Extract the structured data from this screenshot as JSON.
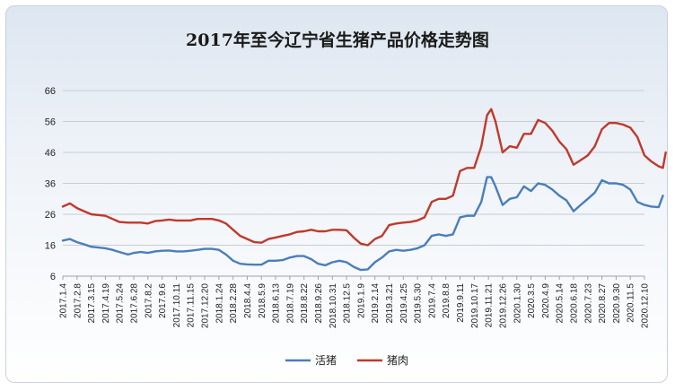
{
  "chart_data": {
    "type": "line",
    "title": "2017年至今辽宁省生猪产品价格走势图",
    "xlabel": "",
    "ylabel": "",
    "ylim": [
      6,
      66
    ],
    "yticks": [
      6,
      16,
      26,
      36,
      46,
      56,
      66
    ],
    "grid": true,
    "legend": "bottom",
    "categories": [
      "2017.1.4",
      "2017.2.8",
      "2017.3.15",
      "2017.4.19",
      "2017.5.24",
      "2017.6.28",
      "2017.8.2",
      "2017.9.6",
      "2017.10.11",
      "2017.11.15",
      "2017.12.20",
      "2018.1.24",
      "2018.2.28",
      "2018.4.4",
      "2018.5.9",
      "2018.6.13",
      "2018.7.19",
      "2018.8.22",
      "2018.9.26",
      "2018.10.31",
      "2018.12.5",
      "2019.1.9",
      "2019.2.14",
      "2019.3.21",
      "2019.4.25",
      "2019.5.30",
      "2019.7.4",
      "2019.8.8",
      "2019.9.11",
      "2019.10.17",
      "2019.11.21",
      "2019.12.26",
      "2020.1.30",
      "2020.3.5",
      "2020.4.9",
      "2020.5.14",
      "2020.6.18",
      "2020.7.23",
      "2020.8.27",
      "2020.9.30",
      "2020.11.5",
      "2020.12.10"
    ],
    "series": [
      {
        "name": "活猪",
        "color": "#4a7ebb",
        "points": [
          [
            0,
            17.5
          ],
          [
            0.5,
            18
          ],
          [
            1,
            17
          ],
          [
            1.5,
            16.3
          ],
          [
            2,
            15.5
          ],
          [
            3,
            15
          ],
          [
            3.5,
            14.5
          ],
          [
            4,
            13.8
          ],
          [
            4.6,
            13
          ],
          [
            5,
            13.5
          ],
          [
            5.5,
            13.8
          ],
          [
            6,
            13.5
          ],
          [
            6.5,
            14
          ],
          [
            7,
            14.2
          ],
          [
            7.5,
            14.3
          ],
          [
            8,
            14
          ],
          [
            8.5,
            14
          ],
          [
            9,
            14.2
          ],
          [
            9.5,
            14.5
          ],
          [
            10,
            14.8
          ],
          [
            10.5,
            14.8
          ],
          [
            11,
            14.5
          ],
          [
            11.5,
            13
          ],
          [
            12,
            11
          ],
          [
            12.5,
            10
          ],
          [
            13,
            9.8
          ],
          [
            13.5,
            9.7
          ],
          [
            14,
            9.7
          ],
          [
            14.5,
            11
          ],
          [
            15,
            11
          ],
          [
            15.5,
            11.2
          ],
          [
            16,
            12
          ],
          [
            16.5,
            12.5
          ],
          [
            17,
            12.5
          ],
          [
            17.5,
            11.5
          ],
          [
            18,
            10
          ],
          [
            18.5,
            9.5
          ],
          [
            19,
            10.5
          ],
          [
            19.5,
            11
          ],
          [
            20,
            10.5
          ],
          [
            20.5,
            9
          ],
          [
            21,
            8
          ],
          [
            21.5,
            8.2
          ],
          [
            22,
            10.5
          ],
          [
            22.5,
            12
          ],
          [
            23,
            14
          ],
          [
            23.5,
            14.5
          ],
          [
            24,
            14.2
          ],
          [
            24.5,
            14.5
          ],
          [
            25,
            15
          ],
          [
            25.5,
            16
          ],
          [
            26,
            19
          ],
          [
            26.5,
            19.5
          ],
          [
            27,
            19
          ],
          [
            27.5,
            19.5
          ],
          [
            28,
            25
          ],
          [
            28.5,
            25.5
          ],
          [
            29,
            25.5
          ],
          [
            29.5,
            30
          ],
          [
            29.9,
            38
          ],
          [
            30.2,
            38
          ],
          [
            30.5,
            35
          ],
          [
            31,
            29
          ],
          [
            31.5,
            31
          ],
          [
            32,
            31.5
          ],
          [
            32.5,
            35
          ],
          [
            33,
            33.5
          ],
          [
            33.5,
            36
          ],
          [
            34,
            35.5
          ],
          [
            34.5,
            34
          ],
          [
            35,
            32
          ],
          [
            35.5,
            30.5
          ],
          [
            36,
            27
          ],
          [
            36.5,
            29
          ],
          [
            37,
            31
          ],
          [
            37.5,
            33
          ],
          [
            38,
            37
          ],
          [
            38.5,
            36
          ],
          [
            39,
            36
          ],
          [
            39.5,
            35.5
          ],
          [
            40,
            34
          ],
          [
            40.5,
            30
          ],
          [
            41,
            29
          ],
          [
            41.5,
            28.5
          ],
          [
            42,
            28.3
          ],
          [
            42.3,
            32
          ]
        ]
      },
      {
        "name": "猪肉",
        "color": "#c0392b",
        "points": [
          [
            0,
            28.5
          ],
          [
            0.5,
            29.5
          ],
          [
            1,
            28
          ],
          [
            1.5,
            27
          ],
          [
            2,
            26
          ],
          [
            3,
            25.5
          ],
          [
            3.5,
            24.5
          ],
          [
            4,
            23.5
          ],
          [
            4.6,
            23.3
          ],
          [
            5,
            23.3
          ],
          [
            5.5,
            23.3
          ],
          [
            6,
            23
          ],
          [
            6.5,
            23.8
          ],
          [
            7,
            24
          ],
          [
            7.5,
            24.3
          ],
          [
            8,
            24
          ],
          [
            8.5,
            24
          ],
          [
            9,
            24
          ],
          [
            9.5,
            24.5
          ],
          [
            10,
            24.5
          ],
          [
            10.5,
            24.5
          ],
          [
            11,
            24
          ],
          [
            11.5,
            23
          ],
          [
            12,
            21
          ],
          [
            12.5,
            19
          ],
          [
            13,
            18
          ],
          [
            13.5,
            17
          ],
          [
            14,
            16.8
          ],
          [
            14.5,
            18
          ],
          [
            15,
            18.5
          ],
          [
            15.5,
            19
          ],
          [
            16,
            19.5
          ],
          [
            16.5,
            20.3
          ],
          [
            17,
            20.5
          ],
          [
            17.5,
            21
          ],
          [
            18,
            20.5
          ],
          [
            18.5,
            20.5
          ],
          [
            19,
            21
          ],
          [
            19.5,
            21
          ],
          [
            20,
            20.8
          ],
          [
            20.5,
            18.5
          ],
          [
            21,
            16.5
          ],
          [
            21.5,
            16
          ],
          [
            22,
            18
          ],
          [
            22.5,
            19
          ],
          [
            23,
            22.5
          ],
          [
            23.5,
            23
          ],
          [
            24,
            23.3
          ],
          [
            24.5,
            23.5
          ],
          [
            25,
            24
          ],
          [
            25.5,
            25
          ],
          [
            26,
            30
          ],
          [
            26.5,
            31
          ],
          [
            27,
            31
          ],
          [
            27.5,
            32
          ],
          [
            28,
            40
          ],
          [
            28.5,
            41
          ],
          [
            29,
            41
          ],
          [
            29.5,
            48
          ],
          [
            29.9,
            58
          ],
          [
            30.2,
            60
          ],
          [
            30.5,
            56
          ],
          [
            31,
            46
          ],
          [
            31.5,
            48
          ],
          [
            32,
            47.5
          ],
          [
            32.5,
            52
          ],
          [
            33,
            52
          ],
          [
            33.5,
            56.5
          ],
          [
            34,
            55.5
          ],
          [
            34.5,
            53
          ],
          [
            35,
            49.5
          ],
          [
            35.5,
            47
          ],
          [
            36,
            42
          ],
          [
            36.5,
            43.5
          ],
          [
            37,
            45
          ],
          [
            37.5,
            48
          ],
          [
            38,
            53.5
          ],
          [
            38.5,
            55.5
          ],
          [
            39,
            55.5
          ],
          [
            39.5,
            55
          ],
          [
            40,
            54
          ],
          [
            40.5,
            51
          ],
          [
            41,
            45
          ],
          [
            41.5,
            43
          ],
          [
            42,
            41.5
          ],
          [
            42.3,
            41
          ],
          [
            42.5,
            46
          ]
        ]
      }
    ]
  }
}
